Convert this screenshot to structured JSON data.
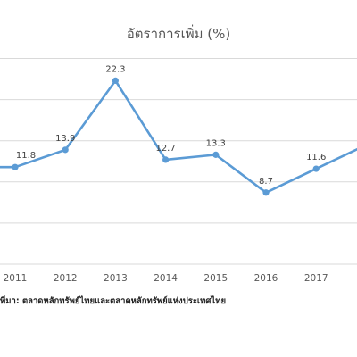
{
  "chart_data": {
    "type": "line",
    "title": "อัตราการเพิ่ม (%)",
    "x": [
      "2011",
      "2012",
      "2013",
      "2014",
      "2015",
      "2016",
      "2017"
    ],
    "series": [
      {
        "values": [
          11.8,
          13.9,
          22.3,
          12.7,
          13.3,
          8.7,
          11.6
        ],
        "labels": [
          "11.8",
          "13.9",
          "22.3",
          "12.7",
          "13.3",
          "8.7",
          "11.6"
        ]
      }
    ],
    "ylim": [
      0,
      25
    ],
    "grid": true,
    "colors": {
      "line": "#5b9bd5",
      "grid": "#d9d9d9",
      "label": "#404040",
      "tick": "#595959"
    }
  },
  "footer": {
    "source": "ที่มา: ตลาดหลักทรัพย์ไทยและตลาดหลักทรัพย์แห่งประเทศไทย"
  }
}
